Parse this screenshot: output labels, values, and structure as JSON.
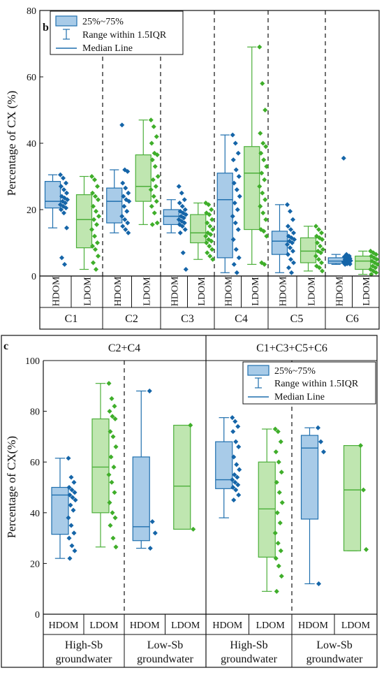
{
  "colors": {
    "hdom_fill": "#a8cbe8",
    "hdom_stroke": "#1f6fae",
    "hdom_point": "#1565a8",
    "ldom_fill": "#bfe6b0",
    "ldom_stroke": "#4caf3a",
    "ldom_point": "#3fae2a",
    "axis": "#111111"
  },
  "panel_b": {
    "label": "b",
    "ylabel": "Percentage of CX (%)",
    "legend": [
      "25%~75%",
      "Range within 1.5IQR",
      "Median Line"
    ],
    "groups": [
      "C1",
      "C2",
      "C3",
      "C4",
      "C5",
      "C6"
    ],
    "categories": [
      "HDOM",
      "LDOM"
    ]
  },
  "panel_c": {
    "label": "c",
    "ylabel": "Percentage of CX(%)",
    "legend": [
      "25%~75%",
      "Range within 1.5IQR",
      "Median Line"
    ],
    "top_groups": [
      "C2+C4",
      "C1+C3+C5+C6"
    ],
    "groups": [
      [
        "High-Sb",
        "groundwater"
      ],
      [
        "Low-Sb",
        "groundwater"
      ],
      [
        "High-Sb",
        "groundwater"
      ],
      [
        "Low-Sb",
        "groundwater"
      ]
    ],
    "categories": [
      "HDOM",
      "LDOM",
      "HDOM",
      "LDOM",
      "HDOM",
      "LDOM",
      "HDOM",
      "LDOM"
    ]
  },
  "chart_data": [
    {
      "type": "box",
      "panel": "b",
      "ylabel": "Percentage of CX (%)",
      "ylim": [
        0,
        80
      ],
      "yticks": [
        0,
        20,
        40,
        60,
        80
      ],
      "series": [
        {
          "group": "C1",
          "category": "HDOM",
          "whisker_low": 14.5,
          "q1": 20.5,
          "median": 22.5,
          "q3": 28.5,
          "whisker_high": 30.5,
          "points": [
            30.5,
            29.5,
            28,
            27,
            26,
            25,
            24,
            23.5,
            23,
            22.5,
            22,
            21.5,
            21,
            20.5,
            20,
            19,
            14.5,
            5.5,
            3.5
          ]
        },
        {
          "group": "C1",
          "category": "LDOM",
          "whisker_low": 2,
          "q1": 8.5,
          "median": 17,
          "q3": 24.5,
          "whisker_high": 30,
          "points": [
            30,
            29,
            27,
            25,
            24,
            23,
            21,
            19.5,
            18,
            17,
            15.5,
            14,
            12,
            10,
            9,
            8,
            6,
            4,
            2
          ]
        },
        {
          "group": "C2",
          "category": "HDOM",
          "whisker_low": 13,
          "q1": 16,
          "median": 22.5,
          "q3": 26.5,
          "whisker_high": 32,
          "points": [
            45.5,
            32,
            31.5,
            28,
            26.5,
            25,
            24,
            23,
            22.5,
            21,
            19.5,
            18,
            17,
            16,
            15,
            14,
            13
          ]
        },
        {
          "group": "C2",
          "category": "LDOM",
          "whisker_low": 15.5,
          "q1": 22.5,
          "median": 27,
          "q3": 36.5,
          "whisker_high": 47,
          "points": [
            47,
            45,
            42,
            40,
            37,
            36.5,
            35,
            33,
            30,
            29,
            27,
            26,
            24,
            22.5,
            21,
            19,
            16,
            15.5
          ]
        },
        {
          "group": "C3",
          "category": "HDOM",
          "whisker_low": 13,
          "q1": 15.5,
          "median": 18,
          "q3": 20,
          "whisker_high": 23,
          "points": [
            27,
            25,
            23,
            22,
            21,
            20,
            19.5,
            19,
            18.5,
            18,
            17.5,
            17,
            16.5,
            16,
            15.5,
            15,
            14,
            13,
            7,
            2
          ]
        },
        {
          "group": "C3",
          "category": "LDOM",
          "whisker_low": 5,
          "q1": 10,
          "median": 13,
          "q3": 18.5,
          "whisker_high": 22,
          "points": [
            22,
            21.5,
            20,
            19,
            18.5,
            17,
            16,
            15,
            14,
            13,
            12.5,
            12,
            11,
            10.5,
            10,
            9,
            8,
            7,
            6,
            5
          ]
        },
        {
          "group": "C4",
          "category": "HDOM",
          "whisker_low": 1,
          "q1": 5.5,
          "median": 23,
          "q3": 31,
          "whisker_high": 42.5,
          "points": [
            42.5,
            40,
            37,
            35,
            32,
            30,
            28,
            26,
            24,
            22,
            20,
            18,
            16,
            14,
            11,
            8,
            5.5,
            3.5,
            1
          ]
        },
        {
          "group": "C4",
          "category": "LDOM",
          "whisker_low": 3.5,
          "q1": 14,
          "median": 31,
          "q3": 39,
          "whisker_high": 69,
          "points": [
            69,
            58,
            50,
            43,
            40,
            39,
            37,
            35,
            33,
            31,
            29,
            27,
            25,
            23,
            21,
            19,
            17,
            14,
            13.5,
            12,
            4,
            3.5
          ]
        },
        {
          "group": "C5",
          "category": "HDOM",
          "whisker_low": 1,
          "q1": 6.5,
          "median": 10.5,
          "q3": 13.5,
          "whisker_high": 21.5,
          "points": [
            21.5,
            19.5,
            17,
            15,
            14,
            13,
            12,
            11.5,
            11,
            10.5,
            10,
            9.5,
            8.5,
            7.5,
            6.5,
            5,
            4,
            2.5,
            1
          ]
        },
        {
          "group": "C5",
          "category": "LDOM",
          "whisker_low": 1.5,
          "q1": 4,
          "median": 7.5,
          "q3": 11.5,
          "whisker_high": 15,
          "points": [
            15,
            14,
            13,
            12,
            11.5,
            11,
            10,
            9,
            8,
            7.5,
            7,
            6,
            5,
            4,
            3,
            2.5,
            1.5
          ]
        },
        {
          "group": "C6",
          "category": "HDOM",
          "whisker_low": 3.5,
          "q1": 3.8,
          "median": 4.5,
          "q3": 5.5,
          "whisker_high": 6.5,
          "points": [
            35.5,
            6.5,
            6,
            5.8,
            5.5,
            5.3,
            5,
            4.8,
            4.6,
            4.5,
            4.4,
            4.2,
            4,
            3.9,
            3.8,
            3.7,
            3.6,
            3.5
          ]
        },
        {
          "group": "C6",
          "category": "LDOM",
          "whisker_low": 0.5,
          "q1": 2,
          "median": 4.5,
          "q3": 6,
          "whisker_high": 7.5,
          "points": [
            7.5,
            7,
            6.5,
            6,
            5.5,
            5,
            4.5,
            4,
            3.5,
            3,
            2.5,
            2,
            1.5,
            1,
            0.5
          ]
        }
      ]
    },
    {
      "type": "box",
      "panel": "c",
      "ylabel": "Percentage of CX(%)",
      "ylim": [
        0,
        100
      ],
      "yticks": [
        0,
        20,
        40,
        60,
        80,
        100
      ],
      "series": [
        {
          "group": "C2+C4 High-Sb groundwater",
          "category": "HDOM",
          "whisker_low": 22,
          "q1": 31.5,
          "median": 47,
          "q3": 50,
          "whisker_high": 61.5,
          "points": [
            61.5,
            54,
            52,
            50,
            49,
            48,
            47,
            46,
            45,
            43,
            41,
            38,
            35,
            32,
            30,
            27,
            25,
            22
          ]
        },
        {
          "group": "C2+C4 High-Sb groundwater",
          "category": "LDOM",
          "whisker_low": 26.5,
          "q1": 40,
          "median": 58,
          "q3": 77,
          "whisker_high": 91,
          "points": [
            91,
            85,
            82,
            80,
            78,
            77,
            72,
            70,
            66,
            62,
            58,
            55,
            52,
            48,
            44,
            40,
            38,
            35,
            30,
            26.5
          ]
        },
        {
          "group": "C2+C4 Low-Sb groundwater",
          "category": "HDOM",
          "whisker_low": 26,
          "q1": 29,
          "median": 34.5,
          "q3": 62,
          "whisker_high": 88,
          "points": [
            88,
            36.5,
            32,
            26
          ]
        },
        {
          "group": "C2+C4 Low-Sb groundwater",
          "category": "LDOM",
          "whisker_low": 33.5,
          "q1": 33.5,
          "median": 50.5,
          "q3": 74.5,
          "whisker_high": 74.5,
          "points": [
            74.5,
            33.5
          ]
        },
        {
          "group": "C1+C3+C5+C6 High-Sb groundwater",
          "category": "HDOM",
          "whisker_low": 38,
          "q1": 49.5,
          "median": 53,
          "q3": 68,
          "whisker_high": 77.5,
          "points": [
            77.5,
            76,
            74,
            72,
            68,
            66,
            62,
            59,
            57,
            55,
            54,
            53,
            52,
            51,
            50,
            49,
            47,
            45
          ]
        },
        {
          "group": "C1+C3+C5+C6 High-Sb groundwater",
          "category": "LDOM",
          "whisker_low": 9,
          "q1": 22.5,
          "median": 41.5,
          "q3": 60,
          "whisker_high": 73,
          "points": [
            73,
            72,
            68,
            64,
            60,
            56,
            52,
            48,
            44,
            40,
            36,
            32,
            28,
            25,
            22,
            19,
            15,
            9
          ]
        },
        {
          "group": "C1+C3+C5+C6 Low-Sb groundwater",
          "category": "HDOM",
          "whisker_low": 12,
          "q1": 37.5,
          "median": 65.5,
          "q3": 70.5,
          "whisker_high": 73.5,
          "points": [
            73.5,
            68,
            64,
            12
          ]
        },
        {
          "group": "C1+C3+C5+C6 Low-Sb groundwater",
          "category": "LDOM",
          "whisker_low": 25,
          "q1": 25,
          "median": 49,
          "q3": 66.5,
          "whisker_high": 66.5,
          "points": [
            66.5,
            49,
            25.5
          ]
        }
      ]
    }
  ]
}
